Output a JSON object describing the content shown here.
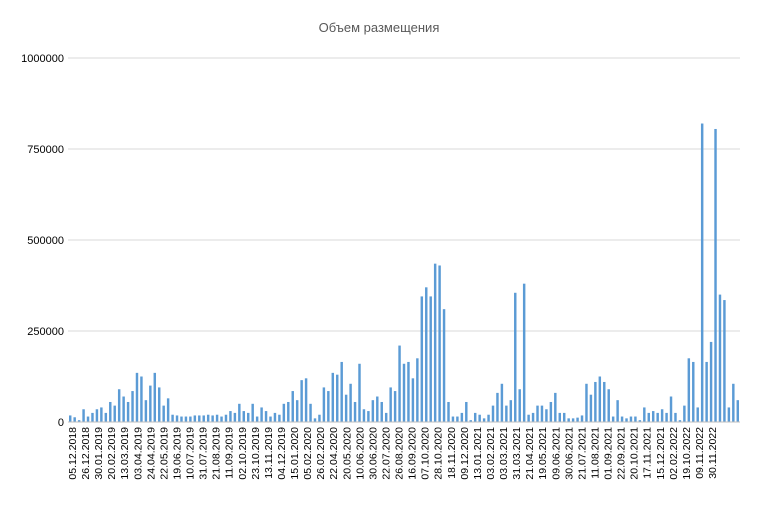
{
  "chart_data": {
    "type": "bar",
    "title": "Объем размещения",
    "xlabel": "",
    "ylabel": "",
    "ylim": [
      0,
      1000000
    ],
    "yticks": [
      0,
      250000,
      500000,
      750000,
      1000000
    ],
    "ytick_labels": [
      "0",
      "250000",
      "500000",
      "750000",
      "1000000"
    ],
    "grid": true,
    "legend": "none",
    "bar_color": "#5b9bd5",
    "x_tick_labels": [
      "05.12.2018",
      "26.12.2018",
      "30.01.2019",
      "20.02.2019",
      "13.03.2019",
      "03.04.2019",
      "24.04.2019",
      "22.05.2019",
      "19.06.2019",
      "10.07.2019",
      "31.07.2019",
      "21.08.2019",
      "11.09.2019",
      "02.10.2019",
      "23.10.2019",
      "13.11.2019",
      "04.12.2019",
      "15.01.2020",
      "05.02.2020",
      "26.02.2020",
      "22.04.2020",
      "20.05.2020",
      "10.06.2020",
      "30.06.2020",
      "22.07.2020",
      "26.08.2020",
      "16.09.2020",
      "07.10.2020",
      "28.10.2020",
      "18.11.2020",
      "09.12.2020",
      "13.01.2021",
      "03.02.2021",
      "03.03.2021",
      "31.03.2021",
      "21.04.2021",
      "19.05.2021",
      "09.06.2021",
      "30.06.2021",
      "21.07.2021",
      "11.08.2021",
      "01.09.2021",
      "22.09.2021",
      "20.10.2021",
      "17.11.2021",
      "15.12.2021",
      "02.02.2022",
      "19.10.2022",
      "09.11.2022",
      "30.11.2022"
    ],
    "values": [
      18000,
      13000,
      5000,
      35000,
      15000,
      25000,
      35000,
      40000,
      25000,
      55000,
      45000,
      90000,
      70000,
      55000,
      85000,
      135000,
      125000,
      60000,
      100000,
      135000,
      95000,
      45000,
      65000,
      20000,
      18000,
      15000,
      15000,
      15000,
      18000,
      18000,
      18000,
      20000,
      18000,
      20000,
      15000,
      20000,
      30000,
      25000,
      50000,
      30000,
      25000,
      50000,
      15000,
      40000,
      30000,
      15000,
      25000,
      20000,
      50000,
      55000,
      85000,
      60000,
      115000,
      120000,
      50000,
      10000,
      20000,
      95000,
      85000,
      135000,
      130000,
      165000,
      75000,
      105000,
      55000,
      160000,
      35000,
      30000,
      60000,
      70000,
      55000,
      25000,
      95000,
      85000,
      210000,
      160000,
      165000,
      120000,
      175000,
      345000,
      370000,
      345000,
      435000,
      430000,
      310000,
      55000,
      15000,
      15000,
      25000,
      55000,
      5000,
      25000,
      20000,
      10000,
      20000,
      45000,
      80000,
      105000,
      45000,
      60000,
      355000,
      90000,
      380000,
      20000,
      25000,
      45000,
      45000,
      35000,
      55000,
      80000,
      25000,
      25000,
      10000,
      10000,
      12000,
      18000,
      105000,
      75000,
      110000,
      125000,
      110000,
      90000,
      15000,
      60000,
      15000,
      10000,
      15000,
      15000,
      5000,
      40000,
      25000,
      30000,
      25000,
      35000,
      25000,
      70000,
      25000,
      5000,
      45000,
      175000,
      165000,
      40000,
      820000,
      165000,
      220000,
      805000,
      350000,
      335000,
      40000,
      105000,
      60000
    ]
  }
}
